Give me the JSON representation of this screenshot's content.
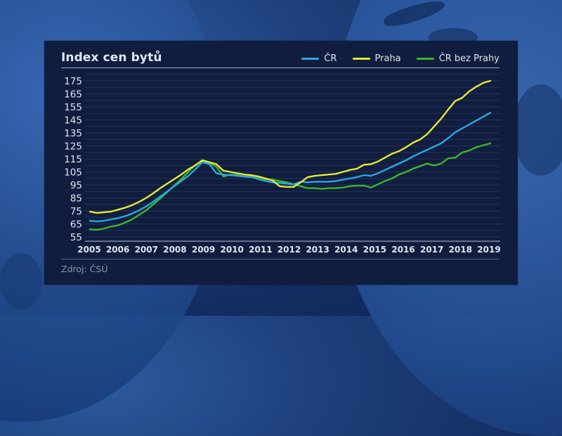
{
  "chart_data": {
    "type": "line",
    "title": "Index cen bytů",
    "xlabel": "",
    "ylabel": "",
    "ylim": [
      55,
      175
    ],
    "yticks": [
      55,
      65,
      75,
      85,
      95,
      105,
      115,
      125,
      135,
      145,
      155,
      165,
      175
    ],
    "xticks": [
      "2005",
      "2006",
      "2007",
      "2008",
      "2009",
      "2010",
      "2011",
      "2012",
      "2013",
      "2014",
      "2015",
      "2016",
      "2017",
      "2018",
      "2019"
    ],
    "grid": true,
    "legend_position": "top-right",
    "frequency": "quarterly",
    "x": [
      "2005Q1",
      "2005Q2",
      "2005Q3",
      "2005Q4",
      "2006Q1",
      "2006Q2",
      "2006Q3",
      "2006Q4",
      "2007Q1",
      "2007Q2",
      "2007Q3",
      "2007Q4",
      "2008Q1",
      "2008Q2",
      "2008Q3",
      "2008Q4",
      "2009Q1",
      "2009Q2",
      "2009Q3",
      "2009Q4",
      "2010Q1",
      "2010Q2",
      "2010Q3",
      "2010Q4",
      "2011Q1",
      "2011Q2",
      "2011Q3",
      "2011Q4",
      "2012Q1",
      "2012Q2",
      "2012Q3",
      "2012Q4",
      "2013Q1",
      "2013Q2",
      "2013Q3",
      "2013Q4",
      "2014Q1",
      "2014Q2",
      "2014Q3",
      "2014Q4",
      "2015Q1",
      "2015Q2",
      "2015Q3",
      "2015Q4",
      "2016Q1",
      "2016Q2",
      "2016Q3",
      "2016Q4",
      "2017Q1",
      "2017Q2",
      "2017Q3",
      "2017Q4",
      "2018Q1",
      "2018Q2",
      "2018Q3",
      "2018Q4",
      "2019Q1",
      "2019Q2"
    ],
    "series": [
      {
        "name": "ČR",
        "color": "#2aa8e0",
        "values": [
          67.5,
          67,
          67.5,
          68.5,
          69.5,
          71,
          73,
          75.5,
          78.5,
          82,
          86,
          90,
          94,
          98,
          102,
          107,
          112.5,
          111,
          104,
          103,
          102.5,
          102,
          101.5,
          101,
          99.5,
          98,
          97,
          96.5,
          96,
          95.5,
          97.5,
          97,
          97.5,
          97.5,
          97.5,
          98,
          99,
          100,
          101,
          102.5,
          102,
          104,
          106.5,
          109,
          111.5,
          114,
          117,
          119.5,
          122,
          124.5,
          127,
          131,
          135.5,
          138.5,
          141.5,
          144.5,
          147.5,
          150.5
        ]
      },
      {
        "name": "Praha",
        "color": "#e6e831",
        "values": [
          74.5,
          73.5,
          74,
          74.5,
          76,
          77.5,
          79.5,
          82,
          85,
          88.5,
          92.5,
          96,
          99.5,
          103,
          107,
          110,
          114,
          112.5,
          111,
          106,
          105,
          104,
          103,
          102.5,
          101.5,
          100,
          98.5,
          94,
          93.5,
          93.5,
          97,
          101,
          102,
          102.5,
          103,
          103.5,
          105,
          106.5,
          107.5,
          110.5,
          111,
          113,
          116,
          119,
          121,
          124,
          127.5,
          130,
          134,
          140,
          146,
          153,
          159.5,
          162,
          167,
          170.5,
          173.5,
          175
        ]
      },
      {
        "name": "ČR bez Prahy",
        "color": "#3bb52a",
        "values": [
          61,
          60.5,
          61.5,
          63,
          64,
          66,
          68.5,
          72,
          75.5,
          80,
          84.5,
          89.5,
          94.5,
          99.5,
          105,
          110.5,
          113.5,
          112,
          109,
          101.5,
          103,
          102.5,
          101.5,
          101.5,
          101,
          99.5,
          99,
          98,
          97,
          95.5,
          94,
          92.5,
          92.5,
          92,
          92.5,
          92.5,
          93,
          94,
          94.5,
          94.5,
          93,
          95.5,
          98,
          100,
          103,
          105,
          107.5,
          109.5,
          111.5,
          110,
          111.5,
          115.5,
          116,
          120,
          121.5,
          124,
          125.5,
          127
        ]
      }
    ],
    "annotations": []
  },
  "header": {
    "title": "Index cen bytů",
    "legend": [
      {
        "label": "ČR",
        "color": "#2aa8e0"
      },
      {
        "label": "Praha",
        "color": "#e6e831"
      },
      {
        "label": "ČR bez Prahy",
        "color": "#3bb52a"
      }
    ]
  },
  "footer": {
    "source": "Zdroj: ČSÚ"
  }
}
